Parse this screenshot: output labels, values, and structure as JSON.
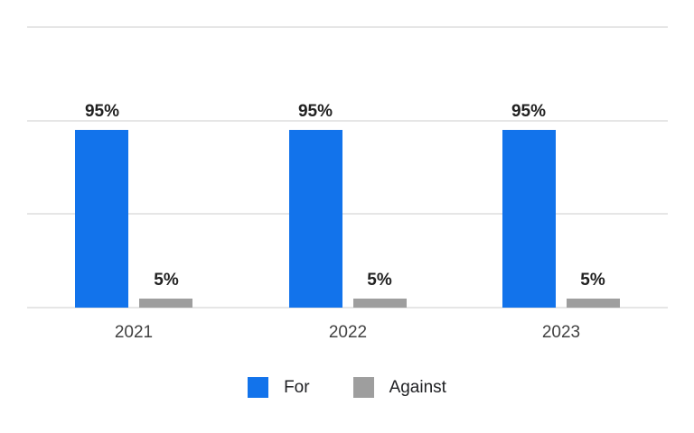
{
  "chart_data": {
    "type": "bar",
    "title": "",
    "xlabel": "",
    "ylabel": "",
    "categories": [
      "2021",
      "2022",
      "2023"
    ],
    "series": [
      {
        "name": "For",
        "color": "#1273eb",
        "values": [
          95,
          95,
          95
        ],
        "value_labels": [
          "95%",
          "95%",
          "95%"
        ]
      },
      {
        "name": "Against",
        "color": "#9e9e9e",
        "values": [
          5,
          5,
          5
        ],
        "value_labels": [
          "5%",
          "5%",
          "5%"
        ]
      }
    ],
    "ylim": [
      0,
      150
    ],
    "gridline_step": 50,
    "grid": true,
    "y_axis_labels_visible": false,
    "legend_position": "bottom"
  },
  "colors": {
    "background": "#ffffff",
    "gridline": "#e6e6e6",
    "data_label": "#212121",
    "category_label": "#424242",
    "legend_text": "#202124"
  }
}
